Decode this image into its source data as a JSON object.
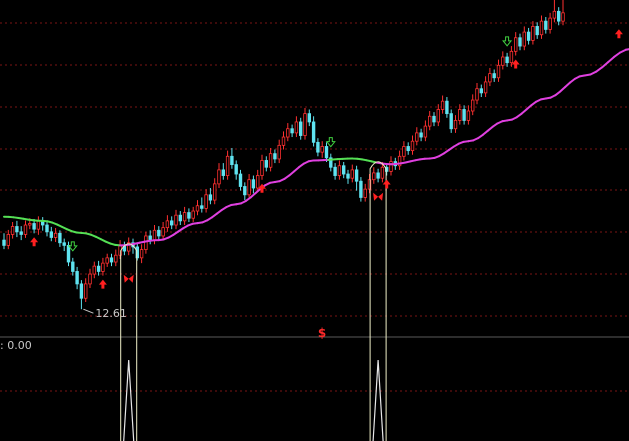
{
  "chart_data": {
    "type": "candlestick",
    "title": "",
    "colors": {
      "background": "#000000",
      "grid": "#7a1515",
      "separator": "#5a5a5a",
      "up_candle": "#ff3030",
      "down_candle": "#5fe3f0",
      "ma_rising": "#e040e0",
      "ma_falling": "#55e055",
      "signal_line": "#f0f0c8",
      "buy_marker": "#ff2020",
      "sell_marker": "#40d040"
    },
    "price_range": [
      11.9,
      20.8
    ],
    "indicator_range": [
      0,
      1
    ],
    "grid": true,
    "candles": [
      [
        14.44,
        14.3,
        14.62,
        14.2
      ],
      [
        14.3,
        14.59,
        14.71,
        14.2
      ],
      [
        14.59,
        14.8,
        14.92,
        14.48
      ],
      [
        14.8,
        14.66,
        14.95,
        14.52
      ],
      [
        14.66,
        14.59,
        14.81,
        14.44
      ],
      [
        14.59,
        14.84,
        14.96,
        14.5
      ],
      [
        14.84,
        14.88,
        15.02,
        14.73
      ],
      [
        14.88,
        14.73,
        15.0,
        14.62
      ],
      [
        14.73,
        14.95,
        15.07,
        14.58
      ],
      [
        14.95,
        14.84,
        15.05,
        14.69
      ],
      [
        14.84,
        14.66,
        14.94,
        14.54
      ],
      [
        14.66,
        14.51,
        14.79,
        14.41
      ],
      [
        14.51,
        14.62,
        14.76,
        14.39
      ],
      [
        14.62,
        14.37,
        14.7,
        14.26
      ],
      [
        14.37,
        14.3,
        14.48,
        14.15
      ],
      [
        14.3,
        13.86,
        14.4,
        13.75
      ],
      [
        13.86,
        13.61,
        13.97,
        13.5
      ],
      [
        13.61,
        13.28,
        13.73,
        13.14
      ],
      [
        13.28,
        12.9,
        13.38,
        12.61
      ],
      [
        12.9,
        13.28,
        13.43,
        12.8
      ],
      [
        13.28,
        13.54,
        13.68,
        13.17
      ],
      [
        13.54,
        13.75,
        13.87,
        13.43
      ],
      [
        13.75,
        13.61,
        13.89,
        13.5
      ],
      [
        13.61,
        13.83,
        13.97,
        13.5
      ],
      [
        13.83,
        13.97,
        14.08,
        13.73
      ],
      [
        13.97,
        13.86,
        14.08,
        13.75
      ],
      [
        13.86,
        14.04,
        14.19,
        13.75
      ],
      [
        14.04,
        14.3,
        14.44,
        13.94
      ],
      [
        14.3,
        14.15,
        14.4,
        14.04
      ],
      [
        14.15,
        14.37,
        14.51,
        14.04
      ],
      [
        14.37,
        14.26,
        14.48,
        14.08
      ],
      [
        14.26,
        13.97,
        14.37,
        13.9
      ],
      [
        13.97,
        14.19,
        14.33,
        13.83
      ],
      [
        14.19,
        14.55,
        14.66,
        14.08
      ],
      [
        14.55,
        14.44,
        14.7,
        14.33
      ],
      [
        14.44,
        14.7,
        14.84,
        14.33
      ],
      [
        14.7,
        14.55,
        14.81,
        14.44
      ],
      [
        14.55,
        14.77,
        14.92,
        14.44
      ],
      [
        14.77,
        14.95,
        15.1,
        14.66
      ],
      [
        14.95,
        14.84,
        15.07,
        14.73
      ],
      [
        14.84,
        15.1,
        15.24,
        14.73
      ],
      [
        15.1,
        14.95,
        15.21,
        14.84
      ],
      [
        14.95,
        15.17,
        15.32,
        14.84
      ],
      [
        15.17,
        15.02,
        15.28,
        14.92
      ],
      [
        15.02,
        15.21,
        15.32,
        14.92
      ],
      [
        15.21,
        15.35,
        15.5,
        15.1
      ],
      [
        15.35,
        15.28,
        15.57,
        15.17
      ],
      [
        15.28,
        15.64,
        15.79,
        15.17
      ],
      [
        15.64,
        15.5,
        15.82,
        15.39
      ],
      [
        15.5,
        15.93,
        16.08,
        15.39
      ],
      [
        15.93,
        16.3,
        16.48,
        15.82
      ],
      [
        16.3,
        16.15,
        16.48,
        16.04
      ],
      [
        16.15,
        16.66,
        16.81,
        16.04
      ],
      [
        16.66,
        16.44,
        16.88,
        16.33
      ],
      [
        16.44,
        16.19,
        16.55,
        16.04
      ],
      [
        16.19,
        15.86,
        16.3,
        15.75
      ],
      [
        15.86,
        15.64,
        15.97,
        15.5
      ],
      [
        15.64,
        16.04,
        16.19,
        15.57
      ],
      [
        16.04,
        15.82,
        16.15,
        15.68
      ],
      [
        15.82,
        16.15,
        16.3,
        15.72
      ],
      [
        16.15,
        16.55,
        16.7,
        16.04
      ],
      [
        16.55,
        16.37,
        16.66,
        16.26
      ],
      [
        16.37,
        16.73,
        16.88,
        16.26
      ],
      [
        16.73,
        16.59,
        16.84,
        16.48
      ],
      [
        16.59,
        16.95,
        17.1,
        16.48
      ],
      [
        16.95,
        17.17,
        17.32,
        16.84
      ],
      [
        17.17,
        17.39,
        17.54,
        17.06
      ],
      [
        17.39,
        17.28,
        17.5,
        17.17
      ],
      [
        17.28,
        17.57,
        17.72,
        17.17
      ],
      [
        17.57,
        17.21,
        17.68,
        17.1
      ],
      [
        17.21,
        17.79,
        17.94,
        17.1
      ],
      [
        17.79,
        17.57,
        17.9,
        17.46
      ],
      [
        17.57,
        17.03,
        17.72,
        16.92
      ],
      [
        17.03,
        16.77,
        17.14,
        16.66
      ],
      [
        16.77,
        16.92,
        17.06,
        16.62
      ],
      [
        16.92,
        16.62,
        17.03,
        16.51
      ],
      [
        16.62,
        16.37,
        16.73,
        16.26
      ],
      [
        16.37,
        16.15,
        16.48,
        16.04
      ],
      [
        16.15,
        16.41,
        16.55,
        16.04
      ],
      [
        16.41,
        16.19,
        16.51,
        16.08
      ],
      [
        16.19,
        16.08,
        16.3,
        15.93
      ],
      [
        16.08,
        16.3,
        16.44,
        15.97
      ],
      [
        16.3,
        16.0,
        16.41,
        15.75
      ],
      [
        16.0,
        15.57,
        16.11,
        15.46
      ],
      [
        15.57,
        15.79,
        15.93,
        15.46
      ],
      [
        15.79,
        16.04,
        16.19,
        15.68
      ],
      [
        16.04,
        16.22,
        16.37,
        15.93
      ],
      [
        16.22,
        16.08,
        16.33,
        15.97
      ],
      [
        16.08,
        16.37,
        16.51,
        15.97
      ],
      [
        16.37,
        16.26,
        16.48,
        16.15
      ],
      [
        16.26,
        16.52,
        16.66,
        16.15
      ],
      [
        16.52,
        16.41,
        16.62,
        16.3
      ],
      [
        16.41,
        16.66,
        16.81,
        16.3
      ],
      [
        16.66,
        16.92,
        17.06,
        16.55
      ],
      [
        16.92,
        16.81,
        17.03,
        16.7
      ],
      [
        16.81,
        17.06,
        17.21,
        16.7
      ],
      [
        17.06,
        17.28,
        17.43,
        16.95
      ],
      [
        17.28,
        17.17,
        17.39,
        17.06
      ],
      [
        17.17,
        17.46,
        17.61,
        17.06
      ],
      [
        17.46,
        17.72,
        17.86,
        17.35
      ],
      [
        17.72,
        17.57,
        17.83,
        17.46
      ],
      [
        17.57,
        17.9,
        18.04,
        17.46
      ],
      [
        17.9,
        18.12,
        18.27,
        17.79
      ],
      [
        18.12,
        17.79,
        18.23,
        17.68
      ],
      [
        17.79,
        17.39,
        17.9,
        17.28
      ],
      [
        17.39,
        17.61,
        17.75,
        17.28
      ],
      [
        17.61,
        17.9,
        18.04,
        17.5
      ],
      [
        17.9,
        17.61,
        18.01,
        17.5
      ],
      [
        17.61,
        17.86,
        18.01,
        17.5
      ],
      [
        17.86,
        18.15,
        18.3,
        17.75
      ],
      [
        18.15,
        18.45,
        18.6,
        18.04
      ],
      [
        18.45,
        18.34,
        18.56,
        18.23
      ],
      [
        18.34,
        18.63,
        18.78,
        18.23
      ],
      [
        18.63,
        18.85,
        19.0,
        18.52
      ],
      [
        18.85,
        18.74,
        18.96,
        18.63
      ],
      [
        18.74,
        19.07,
        19.22,
        18.63
      ],
      [
        19.07,
        19.29,
        19.44,
        18.96
      ],
      [
        19.29,
        19.14,
        19.4,
        19.03
      ],
      [
        19.14,
        19.44,
        19.58,
        19.03
      ],
      [
        19.44,
        19.8,
        19.95,
        19.33
      ],
      [
        19.8,
        19.58,
        19.91,
        19.47
      ],
      [
        19.58,
        19.95,
        20.1,
        19.47
      ],
      [
        19.95,
        19.73,
        20.06,
        19.62
      ],
      [
        19.73,
        20.1,
        20.24,
        19.62
      ],
      [
        20.1,
        19.88,
        20.21,
        19.77
      ],
      [
        19.88,
        20.24,
        20.39,
        19.77
      ],
      [
        20.24,
        20.02,
        20.35,
        19.91
      ],
      [
        20.02,
        20.32,
        20.46,
        19.91
      ],
      [
        20.32,
        20.5,
        20.8,
        20.21
      ],
      [
        20.5,
        20.24,
        20.61,
        20.13
      ],
      [
        20.24,
        20.46,
        20.8,
        20.13
      ]
    ],
    "ma": {
      "x": [
        0,
        9,
        18,
        27,
        36,
        45,
        54,
        63,
        72,
        81,
        90,
        99,
        108,
        117,
        126,
        135,
        146
      ],
      "y": [
        15.06,
        14.95,
        14.63,
        14.3,
        14.44,
        14.89,
        15.39,
        15.98,
        16.55,
        16.6,
        16.45,
        16.6,
        17.06,
        17.61,
        18.19,
        18.8,
        19.51
      ],
      "rising_from_index": 27,
      "falling_segments": [
        [
          0,
          27
        ],
        [
          75,
          87
        ]
      ]
    },
    "signals": {
      "buy_index": [
        7,
        23,
        60,
        89,
        119,
        143
      ],
      "sell_index": [
        16,
        76,
        117,
        140
      ],
      "cross_index": [
        29,
        87
      ],
      "cross_bar_index": [
        29,
        87
      ]
    },
    "annotations": {
      "low_label": "12.61",
      "low_label_index": 18,
      "low_label_price": 12.61,
      "indicator_label": ": 0.00",
      "dollar_sign": "$",
      "dollar_index": 73
    }
  }
}
